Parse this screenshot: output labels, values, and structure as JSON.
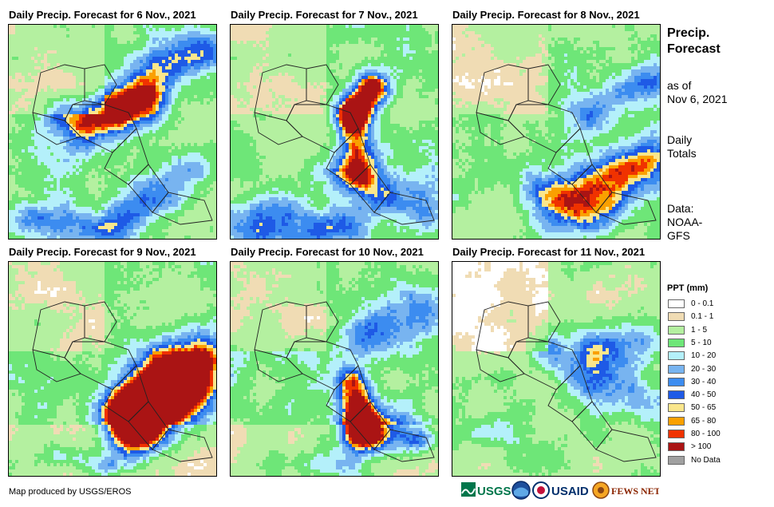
{
  "panels": [
    {
      "title": "Daily Precip. Forecast for 6 Nov., 2021"
    },
    {
      "title": "Daily Precip. Forecast for 7 Nov., 2021"
    },
    {
      "title": "Daily Precip. Forecast for 8 Nov., 2021"
    },
    {
      "title": "Daily Precip. Forecast for 9 Nov., 2021"
    },
    {
      "title": "Daily Precip. Forecast for 10 Nov., 2021"
    },
    {
      "title": "Daily Precip. Forecast for 11 Nov., 2021"
    }
  ],
  "side": {
    "title_line1": "Precip.",
    "title_line2": "Forecast",
    "asof_line1": "as of",
    "asof_line2": "Nov 6, 2021",
    "totals_line1": "Daily",
    "totals_line2": "Totals",
    "data_line1": "Data:",
    "data_line2": "NOAA-",
    "data_line3": "GFS"
  },
  "legend": {
    "title": "PPT (mm)",
    "items": [
      {
        "label": "0 - 0.1",
        "color": "#ffffff"
      },
      {
        "label": "0.1 - 1",
        "color": "#f0dcb4"
      },
      {
        "label": "1 - 5",
        "color": "#b4f0a0"
      },
      {
        "label": "5 - 10",
        "color": "#6ee678"
      },
      {
        "label": "10 - 20",
        "color": "#b4f0fa"
      },
      {
        "label": "20 - 30",
        "color": "#78b4f0"
      },
      {
        "label": "30 - 40",
        "color": "#3c8cf0"
      },
      {
        "label": "40 - 50",
        "color": "#1e5ae6"
      },
      {
        "label": "50 - 65",
        "color": "#fae68c"
      },
      {
        "label": "65 - 80",
        "color": "#faa000"
      },
      {
        "label": "80 - 100",
        "color": "#f03200"
      },
      {
        "label": "> 100",
        "color": "#aa1414"
      },
      {
        "label": "No Data",
        "color": "#a0a0a0"
      }
    ]
  },
  "credit": "Map produced by USGS/EROS",
  "logos": {
    "usgs": "USGS",
    "usaid": "USAID",
    "fewsnet": "FEWS NET"
  }
}
